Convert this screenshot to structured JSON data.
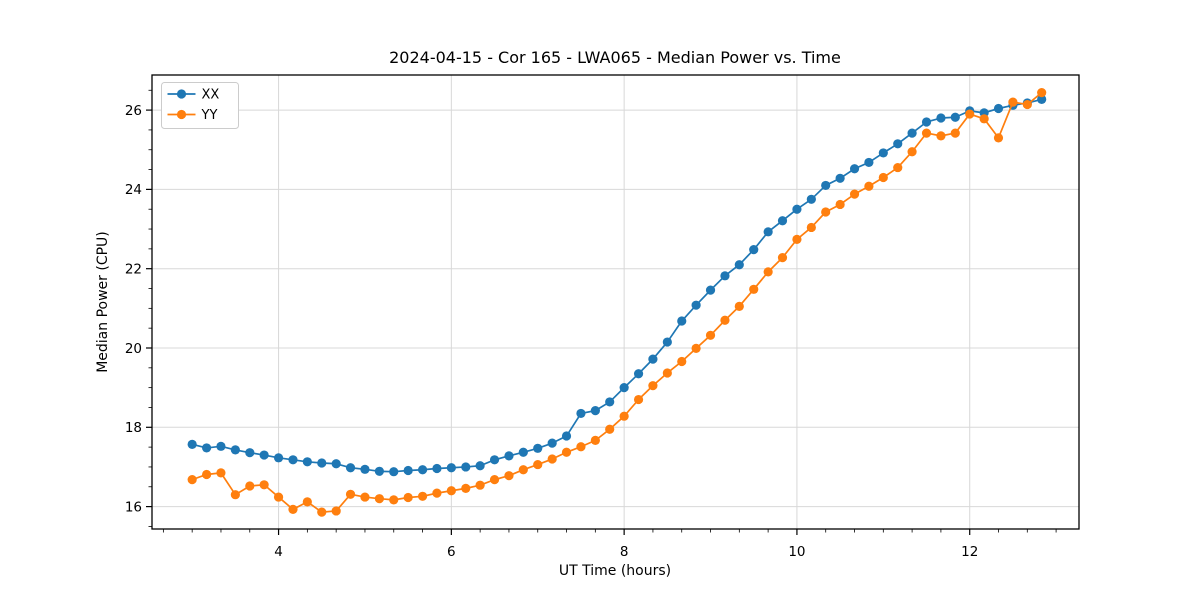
{
  "figure": {
    "title": "2024-04-15 - Cor 165 - LWA065 - Median Power vs. Time",
    "xlabel": "UT Time (hours)",
    "ylabel": "Median Power (CPU)",
    "background": "#ffffff"
  },
  "legend": {
    "position": "upper-left",
    "items": [
      "XX",
      "YY"
    ]
  },
  "colors": {
    "series_xx": "#1f77b4",
    "series_yy": "#ff7f0e",
    "grid": "#d8d8d8",
    "spine": "#000000",
    "legend_border": "#cccccc",
    "legend_background": "#ffffff"
  },
  "chart_data": {
    "type": "line",
    "title": "2024-04-15 - Cor 165 - LWA065 - Median Power vs. Time",
    "xlabel": "UT Time (hours)",
    "ylabel": "Median Power (CPU)",
    "xlim": [
      2.535,
      13.265
    ],
    "ylim": [
      15.435,
      26.885
    ],
    "xticks": [
      4,
      6,
      8,
      10,
      12
    ],
    "yticks": [
      16,
      18,
      20,
      22,
      24,
      26
    ],
    "x_minor_step": 0.33333,
    "y_minor_step": 0.5,
    "grid": true,
    "legend_position": "upper left",
    "marker": "circle",
    "x": [
      3.0,
      3.167,
      3.333,
      3.5,
      3.667,
      3.833,
      4.0,
      4.167,
      4.333,
      4.5,
      4.667,
      4.833,
      5.0,
      5.167,
      5.333,
      5.5,
      5.667,
      5.833,
      6.0,
      6.167,
      6.333,
      6.5,
      6.667,
      6.833,
      7.0,
      7.167,
      7.333,
      7.5,
      7.667,
      7.833,
      8.0,
      8.167,
      8.333,
      8.5,
      8.667,
      8.833,
      9.0,
      9.167,
      9.333,
      9.5,
      9.667,
      9.833,
      10.0,
      10.167,
      10.333,
      10.5,
      10.667,
      10.833,
      11.0,
      11.167,
      11.333,
      11.5,
      11.667,
      11.833,
      12.0,
      12.167,
      12.333,
      12.5,
      12.667,
      12.833
    ],
    "series": [
      {
        "name": "XX",
        "color": "#1f77b4",
        "values": [
          17.57,
          17.48,
          17.52,
          17.43,
          17.36,
          17.3,
          17.23,
          17.18,
          17.13,
          17.1,
          17.08,
          16.98,
          16.94,
          16.89,
          16.88,
          16.91,
          16.93,
          16.96,
          16.98,
          17.0,
          17.03,
          17.18,
          17.28,
          17.37,
          17.47,
          17.6,
          17.78,
          18.35,
          18.42,
          18.64,
          19.0,
          19.35,
          19.72,
          20.15,
          20.68,
          21.08,
          21.46,
          21.82,
          22.1,
          22.48,
          22.93,
          23.21,
          23.5,
          23.75,
          24.1,
          24.28,
          24.52,
          24.68,
          24.92,
          25.15,
          25.42,
          25.7,
          25.8,
          25.82,
          25.98,
          25.93,
          26.04,
          26.12,
          26.18,
          26.27
        ]
      },
      {
        "name": "YY",
        "color": "#ff7f0e",
        "values": [
          16.68,
          16.81,
          16.85,
          16.3,
          16.52,
          16.55,
          16.24,
          15.93,
          16.12,
          15.86,
          15.89,
          16.31,
          16.24,
          16.2,
          16.17,
          16.23,
          16.26,
          16.34,
          16.4,
          16.46,
          16.54,
          16.68,
          16.78,
          16.93,
          17.06,
          17.2,
          17.37,
          17.51,
          17.67,
          17.95,
          18.28,
          18.7,
          19.05,
          19.37,
          19.66,
          19.99,
          20.32,
          20.7,
          21.05,
          21.48,
          21.92,
          22.28,
          22.74,
          23.04,
          23.43,
          23.62,
          23.88,
          24.08,
          24.3,
          24.55,
          24.95,
          25.42,
          25.35,
          25.42,
          25.9,
          25.78,
          25.3,
          26.2,
          26.14,
          26.44
        ]
      }
    ]
  }
}
